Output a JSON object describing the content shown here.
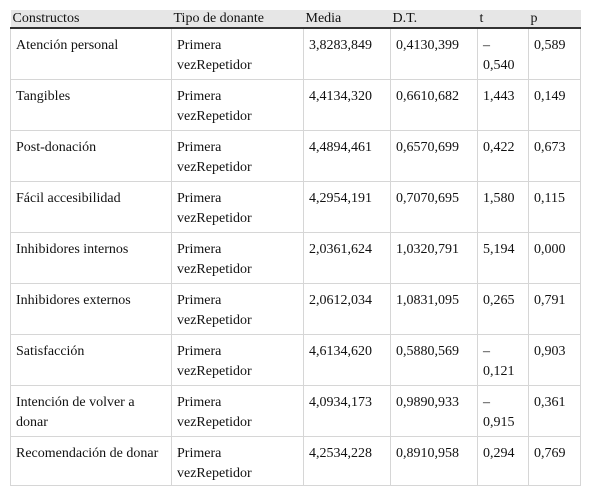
{
  "table": {
    "header": [
      "Constructos",
      "Tipo de donante",
      "Media",
      "D.T.",
      "t",
      "p"
    ],
    "rows": [
      [
        "Atención personal",
        "Primera vezRepetidor",
        "3,8283,849",
        "0,4130,399",
        "– 0,540",
        "0,589"
      ],
      [
        "Tangibles",
        "Primera vezRepetidor",
        "4,4134,320",
        "0,6610,682",
        "1,443",
        "0,149"
      ],
      [
        "Post-donación",
        "Primera vezRepetidor",
        "4,4894,461",
        "0,6570,699",
        "0,422",
        "0,673"
      ],
      [
        "Fácil accesibilidad",
        "Primera vezRepetidor",
        "4,2954,191",
        "0,7070,695",
        "1,580",
        "0,115"
      ],
      [
        "Inhibidores internos",
        "Primera vezRepetidor",
        "2,0361,624",
        "1,0320,791",
        "5,194",
        "0,000"
      ],
      [
        "Inhibidores externos",
        "Primera vezRepetidor",
        "2,0612,034",
        "1,0831,095",
        "0,265",
        "0,791"
      ],
      [
        "Satisfacción",
        "Primera vezRepetidor",
        "4,6134,620",
        "0,5880,569",
        "– 0,121",
        "0,903"
      ],
      [
        "Intención de volver a donar",
        "Primera vezRepetidor",
        "4,0934,173",
        "0,9890,933",
        "– 0,915",
        "0,361"
      ],
      [
        "Recomendación de donar",
        "Primera vezRepetidor",
        "4,2534,228",
        "0,8910,958",
        "0,294",
        "0,769"
      ]
    ]
  }
}
